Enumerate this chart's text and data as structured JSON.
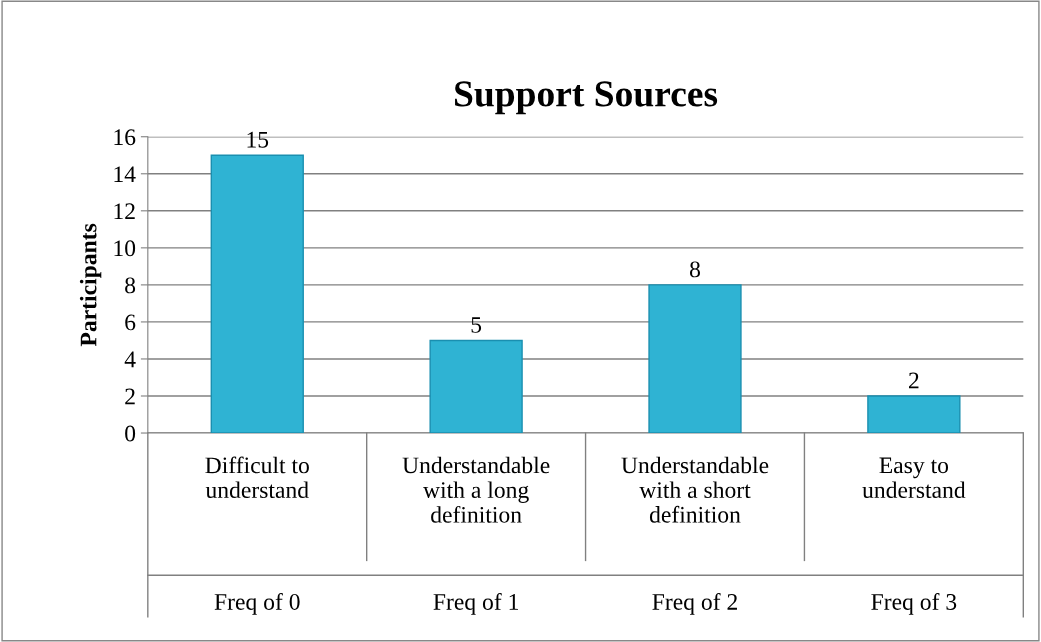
{
  "chart_data": {
    "type": "bar",
    "title": "Support Sources",
    "ylabel": "Participants",
    "categories": [
      "Difficult to\nunderstand",
      "Understandable\nwith a long\ndefinition",
      "Understandable\nwith a short\ndefinition",
      "Easy to\nunderstand"
    ],
    "annotations": [
      "Freq of 0",
      "Freq of 1",
      "Freq of 2",
      "Freq of 3"
    ],
    "values": [
      15,
      5,
      8,
      2
    ],
    "color": "#2fb3d3",
    "ylim": [
      0,
      16
    ],
    "yticks": [
      0,
      2,
      4,
      6,
      8,
      10,
      12,
      14,
      16
    ],
    "grid": "y",
    "data_labels": true
  }
}
